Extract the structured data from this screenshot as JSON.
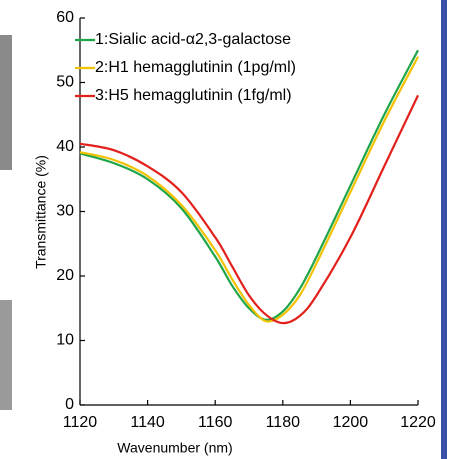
{
  "chart_data": {
    "type": "line",
    "xlabel": "Wavenumber (nm)",
    "ylabel": "Transmittance (%)",
    "x": [
      1120,
      1130,
      1140,
      1150,
      1160,
      1165,
      1170,
      1175,
      1180,
      1185,
      1190,
      1200,
      1210,
      1220
    ],
    "series": [
      {
        "name": "1:Sialic acid-α2,3-galactose",
        "color": "#1fa54a",
        "values": [
          39,
          37.5,
          35,
          30.5,
          23,
          18.5,
          15,
          13.2,
          14.5,
          18,
          23,
          34,
          45,
          55
        ]
      },
      {
        "name": "2:H1 hemagglutinin (1pg/ml)",
        "color": "#f2c200",
        "values": [
          39.2,
          38,
          35.5,
          31,
          24,
          19.5,
          15.5,
          13,
          14,
          17,
          22,
          33,
          44,
          54
        ]
      },
      {
        "name": "3:H5 hemagglutinin (1fg/ml)",
        "color": "#e3201b",
        "values": [
          40.5,
          39.5,
          37,
          33,
          26,
          21.5,
          17,
          14,
          12.7,
          13.8,
          17,
          26,
          37,
          48
        ]
      }
    ],
    "xlim": [
      1120,
      1220
    ],
    "xticks": [
      1120,
      1140,
      1160,
      1180,
      1200,
      1220
    ],
    "ylim": [
      0,
      60
    ],
    "yticks": [
      0,
      10,
      20,
      30,
      40,
      50,
      60
    ],
    "legend": "upper left"
  }
}
